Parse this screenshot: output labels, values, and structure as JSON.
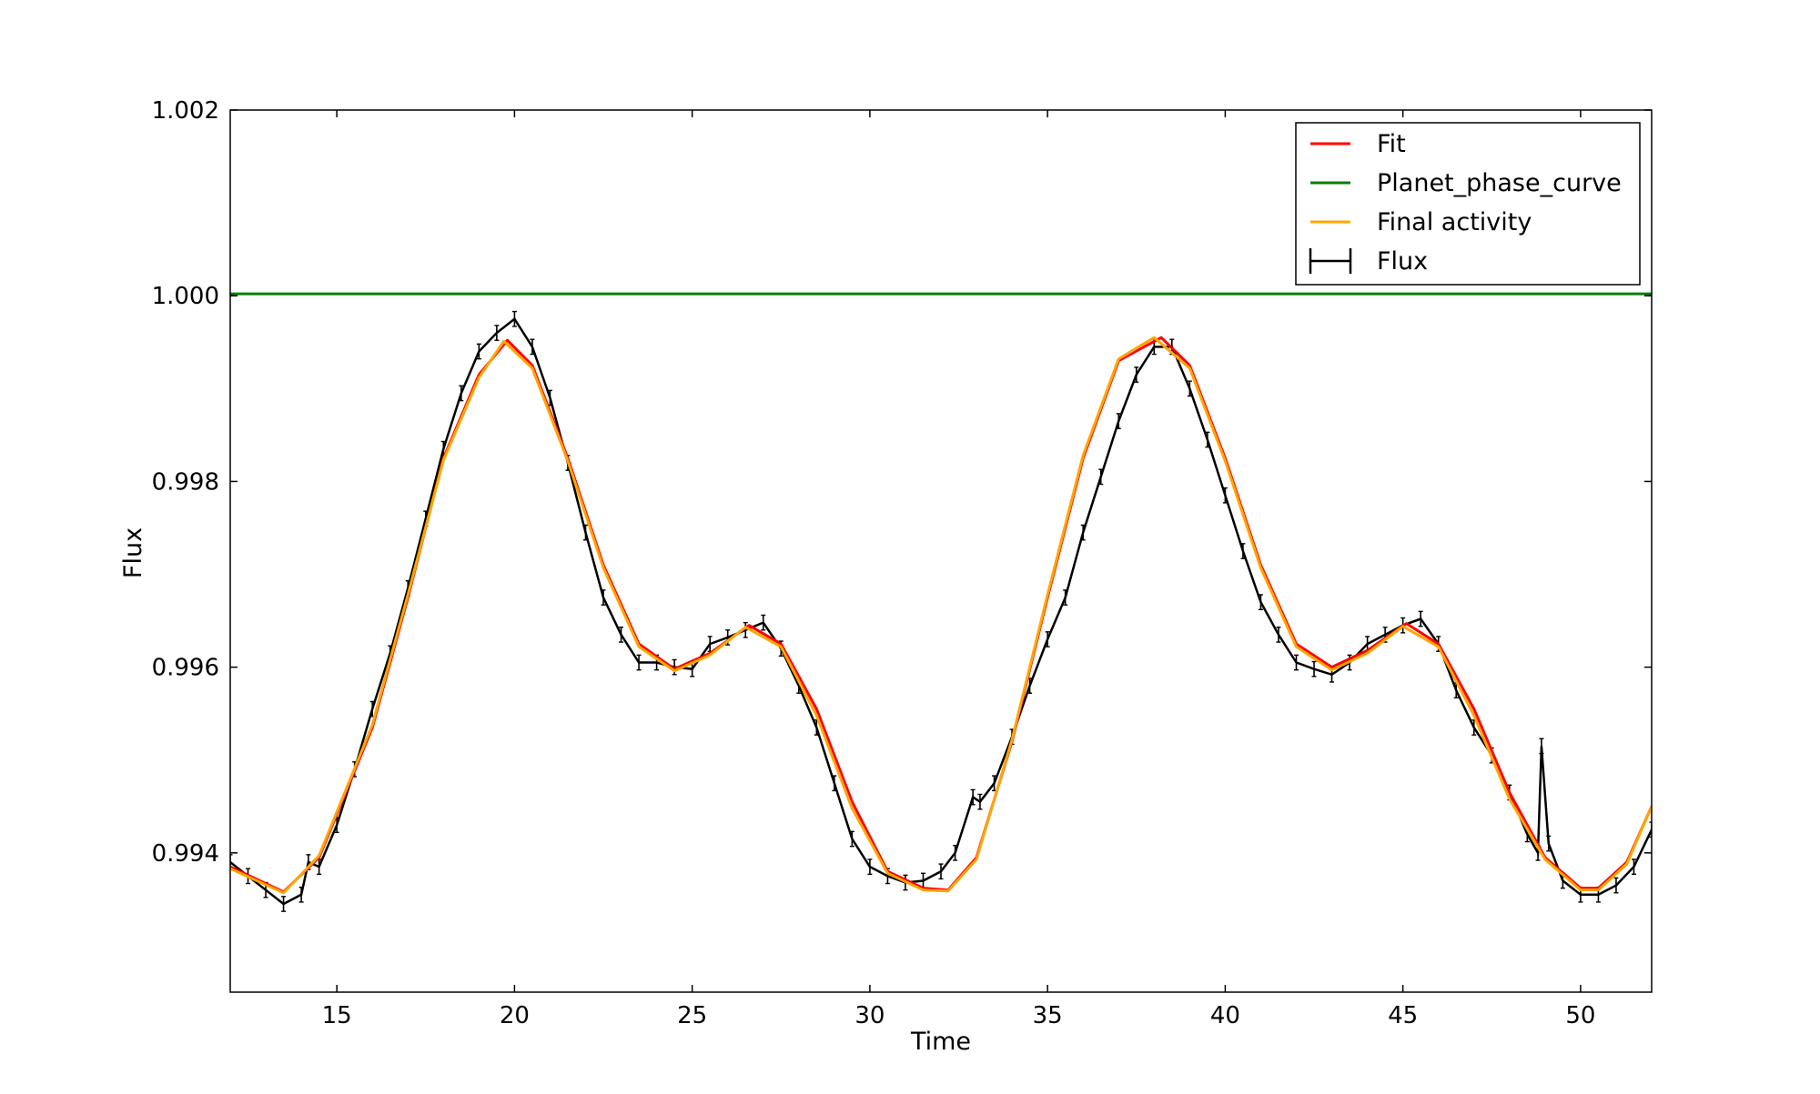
{
  "chart_data": {
    "type": "line",
    "title": "",
    "xlabel": "Time",
    "ylabel": "Flux",
    "xlim": [
      12,
      52
    ],
    "ylim": [
      0.9925,
      1.002
    ],
    "xticks": [
      15,
      20,
      25,
      30,
      35,
      40,
      45,
      50
    ],
    "xtick_labels": [
      "15",
      "20",
      "25",
      "30",
      "35",
      "40",
      "45",
      "50"
    ],
    "yticks": [
      0.994,
      0.996,
      0.998,
      1.0,
      1.002
    ],
    "ytick_labels": [
      "0.994",
      "0.996",
      "0.998",
      "1.000",
      "1.002"
    ],
    "grid": false,
    "legend_position": "top-right",
    "series": [
      {
        "name": "Fit",
        "kind": "line",
        "color": "#ff0000",
        "x": [
          12,
          13.5,
          14.5,
          16,
          17,
          18,
          19,
          19.8,
          20.5,
          21.5,
          22.5,
          23.5,
          24.5,
          25.5,
          26.6,
          27.5,
          28.5,
          29.5,
          30.5,
          31.5,
          32.2,
          33,
          34,
          35,
          36,
          37,
          38.2,
          39,
          40,
          41,
          42,
          43,
          44,
          45.1,
          46,
          47,
          48,
          49,
          50,
          50.5,
          51.3,
          52
        ],
        "y": [
          0.99385,
          0.99358,
          0.99395,
          0.99535,
          0.99675,
          0.99825,
          0.99915,
          0.99952,
          0.99925,
          0.99825,
          0.9971,
          0.99625,
          0.99598,
          0.99615,
          0.99645,
          0.99625,
          0.99555,
          0.99455,
          0.9938,
          0.99362,
          0.9936,
          0.99395,
          0.9952,
          0.99675,
          0.99825,
          0.9993,
          0.99955,
          0.99925,
          0.99825,
          0.9971,
          0.99625,
          0.996,
          0.99618,
          0.99647,
          0.99625,
          0.99555,
          0.99465,
          0.99395,
          0.99362,
          0.99362,
          0.9939,
          0.9945
        ]
      },
      {
        "name": "Planet_phase_curve",
        "kind": "line",
        "color": "#008000",
        "x": [
          12,
          52
        ],
        "y": [
          1.00002,
          1.00002
        ]
      },
      {
        "name": "Final activity",
        "kind": "line",
        "color": "#ffa500",
        "x": [
          12,
          13.5,
          14.5,
          16,
          17,
          18,
          19,
          19.7,
          20.5,
          21.5,
          22.5,
          23.5,
          24.5,
          25.5,
          26.5,
          27.5,
          28.5,
          29.5,
          30.5,
          31.5,
          32.2,
          33,
          34,
          35,
          36,
          37,
          38,
          39,
          40,
          41,
          42,
          43,
          44,
          45,
          46,
          47,
          48,
          49,
          50,
          50.5,
          51.3,
          52
        ],
        "y": [
          0.99383,
          0.99357,
          0.99397,
          0.99538,
          0.99678,
          0.99823,
          0.99912,
          0.99951,
          0.99922,
          0.99822,
          0.99707,
          0.99622,
          0.99596,
          0.99613,
          0.99643,
          0.99622,
          0.99548,
          0.99448,
          0.99378,
          0.9936,
          0.99359,
          0.99393,
          0.99522,
          0.99678,
          0.99828,
          0.99932,
          0.99955,
          0.99922,
          0.99822,
          0.99707,
          0.99622,
          0.99597,
          0.99615,
          0.99644,
          0.99622,
          0.99548,
          0.99458,
          0.99393,
          0.9936,
          0.9936,
          0.99388,
          0.9945
        ]
      },
      {
        "name": "Flux",
        "kind": "errorbar",
        "color": "#000000",
        "error": 8e-05,
        "x": [
          12,
          12.5,
          13,
          13.5,
          14,
          14.2,
          14.5,
          15,
          15.5,
          16,
          16.5,
          17,
          17.5,
          18,
          18.5,
          19,
          19.5,
          20,
          20.5,
          21,
          21.5,
          22,
          22.5,
          23,
          23.5,
          24,
          24.5,
          25,
          25.5,
          26,
          26.5,
          27,
          27.5,
          28,
          28.5,
          29,
          29.5,
          30,
          30.5,
          31,
          31.5,
          32,
          32.4,
          32.9,
          33.1,
          33.5,
          34,
          34.5,
          35,
          35.5,
          36,
          36.5,
          37,
          37.5,
          38,
          38.5,
          39,
          39.5,
          40,
          40.5,
          41,
          41.5,
          42,
          42.5,
          43,
          43.5,
          44,
          44.5,
          45,
          45.5,
          46,
          46.5,
          47,
          47.5,
          48,
          48.5,
          48.8,
          48.9,
          49.1,
          49.5,
          50,
          50.5,
          51,
          51.5,
          52
        ],
        "y": [
          0.9939,
          0.99375,
          0.9936,
          0.99345,
          0.99355,
          0.9939,
          0.99385,
          0.9943,
          0.9949,
          0.99555,
          0.99615,
          0.99685,
          0.9976,
          0.99835,
          0.99895,
          0.9994,
          0.9996,
          0.99975,
          0.99945,
          0.9989,
          0.9982,
          0.99745,
          0.99675,
          0.99635,
          0.99605,
          0.99605,
          0.996,
          0.99598,
          0.99625,
          0.99632,
          0.9964,
          0.99648,
          0.9962,
          0.9958,
          0.99535,
          0.99475,
          0.99415,
          0.99385,
          0.99375,
          0.99368,
          0.9937,
          0.9938,
          0.994,
          0.9946,
          0.99455,
          0.99475,
          0.99525,
          0.9958,
          0.9963,
          0.99675,
          0.99745,
          0.99805,
          0.99865,
          0.99915,
          0.99945,
          0.99945,
          0.999,
          0.99845,
          0.99785,
          0.99725,
          0.9967,
          0.99635,
          0.99605,
          0.99598,
          0.99592,
          0.99605,
          0.99625,
          0.99635,
          0.99645,
          0.99652,
          0.99625,
          0.99575,
          0.99535,
          0.99505,
          0.99465,
          0.9942,
          0.994,
          0.99515,
          0.9941,
          0.9937,
          0.99355,
          0.99355,
          0.99365,
          0.99385,
          0.99425
        ]
      }
    ]
  },
  "legend": {
    "entries": [
      {
        "label": "Fit",
        "color": "#ff0000",
        "kind": "line"
      },
      {
        "label": "Planet_phase_curve",
        "color": "#008000",
        "kind": "line"
      },
      {
        "label": "Final activity",
        "color": "#ffa500",
        "kind": "line"
      },
      {
        "label": "Flux",
        "color": "#000000",
        "kind": "errorbar"
      }
    ]
  }
}
